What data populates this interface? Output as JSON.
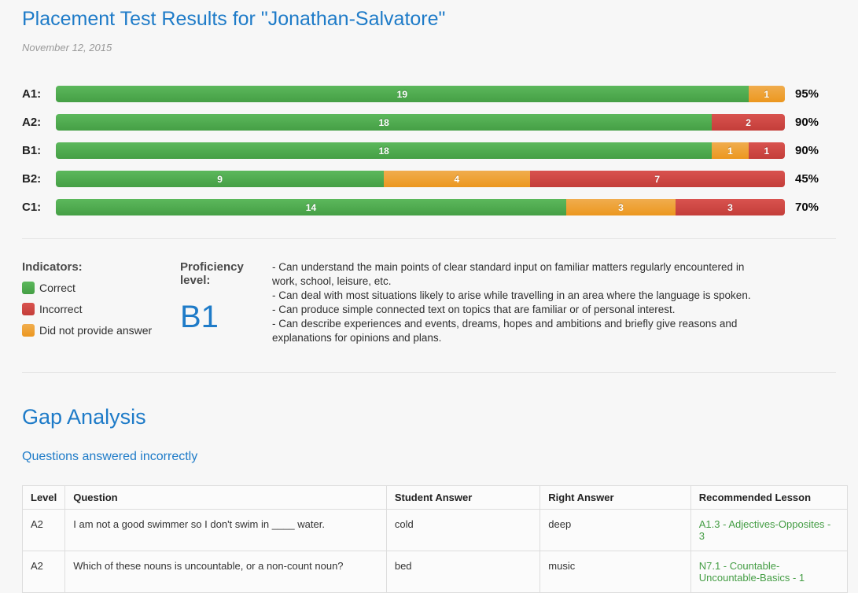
{
  "page": {
    "title": "Placement Test Results for \"Jonathan-Salvatore\"",
    "date": "November 12, 2015"
  },
  "colors": {
    "heading_blue": "#1e7bc8",
    "correct": {
      "base": "#5cb85c",
      "gradient_end": "#459f45"
    },
    "incorrect": {
      "base": "#d9534f",
      "gradient_end": "#c43e3a"
    },
    "no_answer": {
      "base": "#f0ad4e",
      "gradient_end": "#ec971f"
    },
    "lesson_link_green": "#449d44"
  },
  "chart_data": {
    "type": "bar",
    "orientation": "horizontal",
    "stacked": true,
    "categories": [
      "A1",
      "A2",
      "B1",
      "B2",
      "C1"
    ],
    "category_label_suffix": ":",
    "total_per_category": 20,
    "series": [
      {
        "name": "Correct",
        "color_key": "correct",
        "values": [
          19,
          18,
          18,
          9,
          14
        ]
      },
      {
        "name": "Did not provide answer",
        "color_key": "no_answer",
        "values": [
          1,
          0,
          1,
          4,
          3
        ]
      },
      {
        "name": "Incorrect",
        "color_key": "incorrect",
        "values": [
          0,
          2,
          1,
          7,
          3
        ]
      }
    ],
    "percent_labels": [
      "95%",
      "90%",
      "90%",
      "45%",
      "70%"
    ],
    "legend_position": "bottom-left",
    "grid": false
  },
  "indicators": {
    "heading": "Indicators:",
    "items": [
      {
        "label": "Correct",
        "color_key": "correct"
      },
      {
        "label": "Incorrect",
        "color_key": "incorrect"
      },
      {
        "label": "Did not provide answer",
        "color_key": "no_answer"
      }
    ]
  },
  "proficiency": {
    "label": "Proficiency level:",
    "level": "B1",
    "descriptions": [
      "- Can understand the main points of clear standard input on familiar matters regularly encountered in work, school, leisure, etc.",
      "- Can deal with most situations likely to arise while travelling in an area where the language is spoken.",
      "- Can produce simple connected text on topics that are familiar or of personal interest.",
      "- Can describe experiences and events, dreams, hopes and ambitions and briefly give reasons and explanations for opinions and plans."
    ]
  },
  "gap_analysis": {
    "heading": "Gap Analysis",
    "subheading": "Questions answered incorrectly",
    "table": {
      "columns": [
        "Level",
        "Question",
        "Student Answer",
        "Right Answer",
        "Recommended Lesson"
      ],
      "rows": [
        {
          "level": "A2",
          "question": "I am not a good swimmer so I don't swim in ____ water.",
          "student_answer": "cold",
          "right_answer": "deep",
          "lesson": "A1.3 - Adjectives-Opposites - 3"
        },
        {
          "level": "A2",
          "question": "Which of these nouns is uncountable, or a non-count noun?",
          "student_answer": "bed",
          "right_answer": "music",
          "lesson": "N7.1 - Countable-Uncountable-Basics - 1"
        }
      ]
    }
  }
}
